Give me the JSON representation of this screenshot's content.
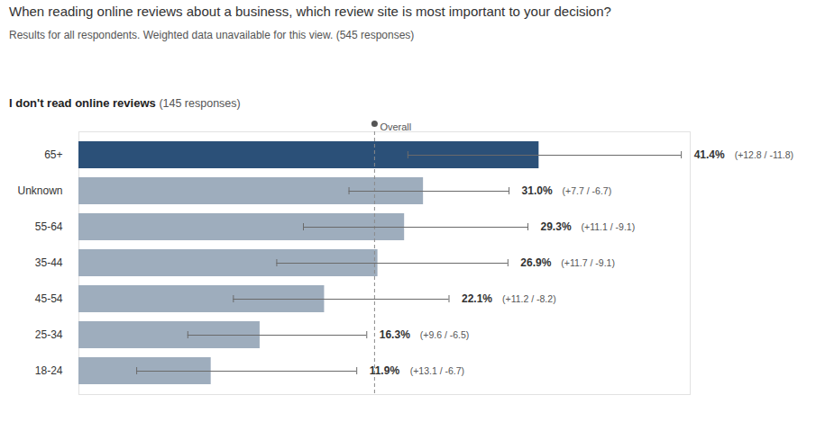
{
  "chart_data": {
    "type": "bar",
    "orientation": "horizontal",
    "title": "When reading online reviews about a business, which review site is most important to your decision?",
    "subtitle": "Results for all respondents. Weighted data unavailable for this view. (545 responses)",
    "panel_title": "I don't read online reviews",
    "panel_note": "(145 responses)",
    "categories": [
      "65+",
      "Unknown",
      "55-64",
      "35-44",
      "45-54",
      "25-34",
      "18-24"
    ],
    "values": [
      41.4,
      31.0,
      29.3,
      26.9,
      22.1,
      16.3,
      11.9
    ],
    "value_labels": [
      "41.4%",
      "31.0%",
      "29.3%",
      "26.9%",
      "22.1%",
      "16.3%",
      "11.9%"
    ],
    "error_plus": [
      12.8,
      7.7,
      11.1,
      11.7,
      11.2,
      9.6,
      13.1
    ],
    "error_minus": [
      11.8,
      6.7,
      9.1,
      9.1,
      8.2,
      6.5,
      6.7
    ],
    "error_labels": [
      "(+12.8 / -11.8)",
      "(+7.7 / -6.7)",
      "(+11.1 / -9.1)",
      "(+11.7 / -9.1)",
      "(+11.2 / -8.2)",
      "(+9.6 / -6.5)",
      "(+13.1 / -6.7)"
    ],
    "colors": [
      "#2b5078",
      "#9eadbd",
      "#9eadbd",
      "#9eadbd",
      "#9eadbd",
      "#9eadbd",
      "#9eadbd"
    ],
    "overall_label": "Overall",
    "overall_value": 26.6,
    "xlim": [
      0,
      55
    ],
    "data_labels": true,
    "tick_labels": "y",
    "grid": false
  }
}
